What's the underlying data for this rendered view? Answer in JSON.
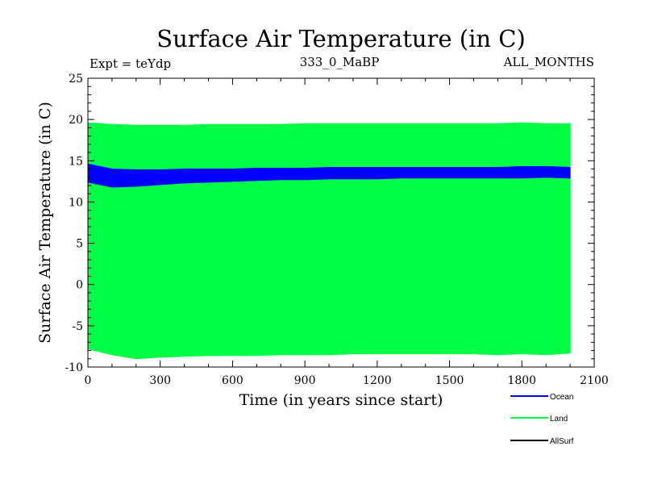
{
  "chart_data": {
    "type": "area",
    "title": "Surface Air Temperature (in C)",
    "subtitle_left": "Expt = teYdp",
    "subtitle_center": "333_0_MaBP",
    "subtitle_right": "ALL_MONTHS",
    "xlabel": "Time (in years since start)",
    "ylabel": "Surface Air Temperature (in C)",
    "xlim": [
      0,
      2100
    ],
    "ylim": [
      -10,
      25
    ],
    "x_ticks": [
      0,
      300,
      600,
      900,
      1200,
      1500,
      1800,
      2100
    ],
    "y_ticks": [
      -10,
      -5,
      0,
      5,
      10,
      15,
      20,
      25
    ],
    "x_tick_labels": [
      "0",
      "300",
      "600",
      "900",
      "1200",
      "1500",
      "1800",
      "2100"
    ],
    "y_tick_labels": [
      "-10",
      "-5",
      "0",
      "5",
      "10",
      "15",
      "20",
      "25"
    ],
    "series": [
      {
        "name": "Land",
        "color": "#00ff44",
        "x": [
          0,
          100,
          200,
          300,
          400,
          500,
          600,
          700,
          800,
          900,
          1000,
          1100,
          1200,
          1300,
          1400,
          1500,
          1600,
          1700,
          1800,
          1900,
          2000
        ],
        "upper": [
          19.6,
          19.4,
          19.3,
          19.3,
          19.3,
          19.4,
          19.4,
          19.4,
          19.4,
          19.5,
          19.5,
          19.5,
          19.5,
          19.5,
          19.5,
          19.5,
          19.5,
          19.5,
          19.6,
          19.5,
          19.5
        ],
        "lower": [
          -7.8,
          -8.5,
          -9.0,
          -8.8,
          -8.7,
          -8.6,
          -8.6,
          -8.6,
          -8.5,
          -8.5,
          -8.5,
          -8.4,
          -8.4,
          -8.4,
          -8.4,
          -8.4,
          -8.4,
          -8.5,
          -8.4,
          -8.5,
          -8.3
        ]
      },
      {
        "name": "Ocean",
        "color": "#0000ff",
        "x": [
          0,
          100,
          200,
          300,
          400,
          500,
          600,
          700,
          800,
          900,
          1000,
          1100,
          1200,
          1300,
          1400,
          1500,
          1600,
          1700,
          1800,
          1900,
          2000
        ],
        "upper": [
          14.6,
          14.0,
          13.9,
          13.9,
          14.0,
          14.0,
          14.0,
          14.1,
          14.1,
          14.1,
          14.2,
          14.2,
          14.2,
          14.2,
          14.2,
          14.2,
          14.2,
          14.2,
          14.3,
          14.3,
          14.2
        ],
        "lower": [
          12.4,
          11.8,
          11.9,
          12.1,
          12.3,
          12.4,
          12.5,
          12.6,
          12.7,
          12.7,
          12.8,
          12.8,
          12.8,
          12.9,
          12.9,
          12.9,
          12.9,
          12.9,
          12.9,
          13.0,
          12.9
        ]
      },
      {
        "name": "AllSurf",
        "color": "#000000",
        "x": [],
        "upper": [],
        "lower": []
      }
    ],
    "legend": {
      "placement": "bottom-right",
      "entries": [
        {
          "label": "Ocean",
          "color": "#0000ff"
        },
        {
          "label": "Land",
          "color": "#00ff44"
        },
        {
          "label": "AllSurf",
          "color": "#000000"
        }
      ]
    }
  }
}
